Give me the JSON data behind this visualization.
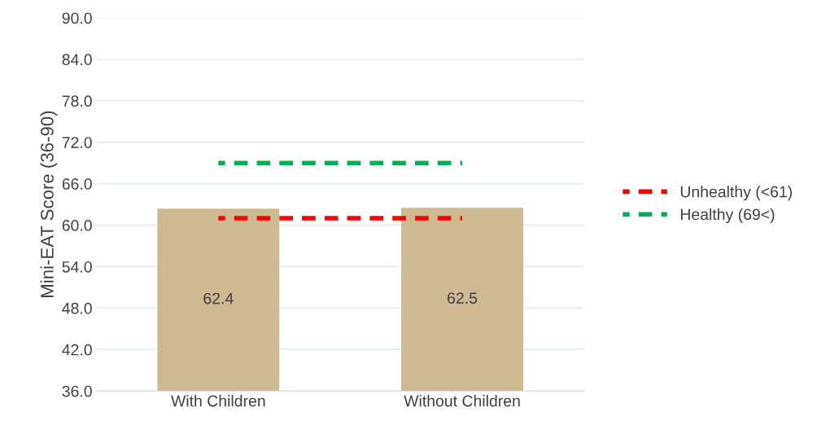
{
  "chart_data": {
    "type": "bar",
    "ylabel": "Mini-EAT Score (36-90)",
    "categories": [
      "With Children",
      "Without Children"
    ],
    "series": [
      {
        "color": "#cfb991",
        "values": [
          62.4,
          62.5
        ],
        "value_labels": [
          "62.4",
          "62.5"
        ]
      },
      {
        "type": "line",
        "name": "Unhealthy (<61)",
        "color": "#ff0000",
        "values": [
          61,
          61
        ],
        "line_style": "dashed"
      },
      {
        "type": "line",
        "name": "Healthy (69<)",
        "color": "#00b050",
        "values": [
          69,
          69
        ],
        "line_style": "dashed"
      }
    ],
    "ylim": [
      36,
      90
    ],
    "yticks": [
      {
        "value": 36,
        "label": "36.0"
      },
      {
        "value": 42,
        "label": "42.0"
      },
      {
        "value": 48,
        "label": "48.0"
      },
      {
        "value": 54,
        "label": "54.0"
      },
      {
        "value": 60,
        "label": "60.0"
      },
      {
        "value": 66,
        "label": "66.0"
      },
      {
        "value": 72,
        "label": "72.0"
      },
      {
        "value": 78,
        "label": "78.0"
      },
      {
        "value": 84,
        "label": "84.0"
      },
      {
        "value": 90,
        "label": "90.0"
      }
    ],
    "grid": "y",
    "legend": "right",
    "marker": "none"
  }
}
